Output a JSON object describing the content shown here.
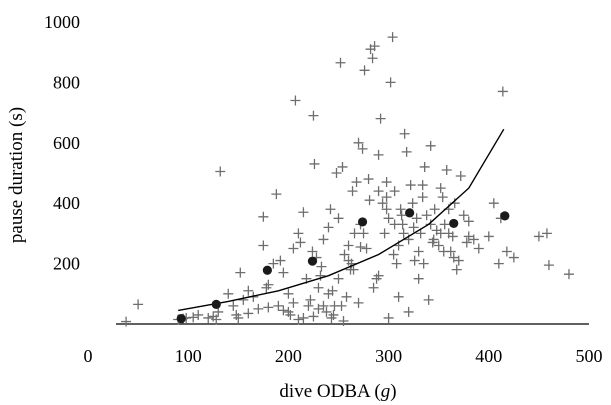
{
  "chart_data": {
    "type": "scatter",
    "xlabel": "dive ODBA (g)",
    "ylabel": "pause duration (s)",
    "xlim": [
      0,
      500
    ],
    "ylim": [
      0,
      1000
    ],
    "xticks": [
      0,
      100,
      200,
      300,
      400,
      500
    ],
    "yticks": [
      200,
      400,
      600,
      800,
      1000
    ],
    "grid": false,
    "series": [
      {
        "marker": "plus",
        "color": "#6e6e6e",
        "points": [
          [
            38,
            8
          ],
          [
            50,
            65
          ],
          [
            90,
            15
          ],
          [
            95,
            18
          ],
          [
            98,
            20
          ],
          [
            105,
            22
          ],
          [
            110,
            30
          ],
          [
            120,
            20
          ],
          [
            125,
            25
          ],
          [
            128,
            15
          ],
          [
            130,
            40
          ],
          [
            132,
            505
          ],
          [
            140,
            100
          ],
          [
            145,
            60
          ],
          [
            148,
            30
          ],
          [
            152,
            170
          ],
          [
            155,
            80
          ],
          [
            160,
            110
          ],
          [
            165,
            90
          ],
          [
            170,
            50
          ],
          [
            175,
            355
          ],
          [
            178,
            120
          ],
          [
            180,
            130
          ],
          [
            185,
            200
          ],
          [
            188,
            430
          ],
          [
            190,
            60
          ],
          [
            192,
            210
          ],
          [
            195,
            170
          ],
          [
            200,
            100
          ],
          [
            202,
            30
          ],
          [
            205,
            250
          ],
          [
            207,
            740
          ],
          [
            210,
            300
          ],
          [
            212,
            270
          ],
          [
            215,
            370
          ],
          [
            218,
            150
          ],
          [
            220,
            60
          ],
          [
            222,
            80
          ],
          [
            225,
            690
          ],
          [
            226,
            530
          ],
          [
            228,
            220
          ],
          [
            230,
            120
          ],
          [
            232,
            160
          ],
          [
            235,
            280
          ],
          [
            238,
            40
          ],
          [
            240,
            320
          ],
          [
            242,
            380
          ],
          [
            244,
            110
          ],
          [
            246,
            60
          ],
          [
            248,
            500
          ],
          [
            250,
            150
          ],
          [
            252,
            865
          ],
          [
            254,
            520
          ],
          [
            256,
            230
          ],
          [
            258,
            90
          ],
          [
            260,
            260
          ],
          [
            262,
            180
          ],
          [
            264,
            440
          ],
          [
            266,
            300
          ],
          [
            268,
            470
          ],
          [
            270,
            600
          ],
          [
            272,
            330
          ],
          [
            274,
            580
          ],
          [
            276,
            840
          ],
          [
            278,
            250
          ],
          [
            280,
            480
          ],
          [
            282,
            910
          ],
          [
            284,
            880
          ],
          [
            286,
            920
          ],
          [
            288,
            150
          ],
          [
            290,
            560
          ],
          [
            292,
            680
          ],
          [
            294,
            400
          ],
          [
            296,
            300
          ],
          [
            298,
            470
          ],
          [
            300,
            350
          ],
          [
            302,
            800
          ],
          [
            304,
            950
          ],
          [
            306,
            440
          ],
          [
            308,
            200
          ],
          [
            310,
            260
          ],
          [
            312,
            380
          ],
          [
            314,
            330
          ],
          [
            316,
            630
          ],
          [
            318,
            570
          ],
          [
            320,
            280
          ],
          [
            322,
            460
          ],
          [
            324,
            400
          ],
          [
            326,
            210
          ],
          [
            328,
            350
          ],
          [
            330,
            240
          ],
          [
            332,
            300
          ],
          [
            334,
            420
          ],
          [
            336,
            520
          ],
          [
            338,
            360
          ],
          [
            340,
            80
          ],
          [
            342,
            590
          ],
          [
            344,
            270
          ],
          [
            346,
            380
          ],
          [
            348,
            310
          ],
          [
            350,
            260
          ],
          [
            352,
            450
          ],
          [
            354,
            420
          ],
          [
            356,
            330
          ],
          [
            358,
            510
          ],
          [
            360,
            300
          ],
          [
            362,
            240
          ],
          [
            364,
            290
          ],
          [
            366,
            400
          ],
          [
            368,
            180
          ],
          [
            370,
            210
          ],
          [
            372,
            490
          ],
          [
            375,
            360
          ],
          [
            378,
            270
          ],
          [
            380,
            290
          ],
          [
            385,
            280
          ],
          [
            390,
            250
          ],
          [
            400,
            290
          ],
          [
            405,
            400
          ],
          [
            410,
            200
          ],
          [
            412,
            350
          ],
          [
            414,
            770
          ],
          [
            418,
            240
          ],
          [
            425,
            220
          ],
          [
            450,
            290
          ],
          [
            458,
            300
          ],
          [
            460,
            195
          ],
          [
            480,
            165
          ],
          [
            175,
            260
          ],
          [
            200,
            40
          ],
          [
            230,
            50
          ],
          [
            255,
            10
          ],
          [
            265,
            180
          ],
          [
            285,
            120
          ],
          [
            310,
            90
          ],
          [
            320,
            40
          ],
          [
            330,
            150
          ],
          [
            300,
            20
          ],
          [
            245,
            30
          ],
          [
            150,
            20
          ],
          [
            160,
            35
          ],
          [
            180,
            55
          ],
          [
            195,
            45
          ],
          [
            215,
            20
          ],
          [
            270,
            70
          ],
          [
            305,
            230
          ],
          [
            315,
            300
          ],
          [
            325,
            320
          ],
          [
            345,
            280
          ],
          [
            355,
            240
          ],
          [
            365,
            220
          ],
          [
            335,
            200
          ],
          [
            290,
            160
          ],
          [
            275,
            300
          ],
          [
            260,
            210
          ],
          [
            250,
            350
          ],
          [
            240,
            100
          ],
          [
            235,
            60
          ],
          [
            225,
            25
          ],
          [
            210,
            15
          ],
          [
            205,
            70
          ],
          [
            290,
            440
          ],
          [
            298,
            420
          ],
          [
            306,
            330
          ],
          [
            313,
            360
          ],
          [
            334,
            460
          ],
          [
            342,
            330
          ],
          [
            352,
            300
          ],
          [
            360,
            380
          ],
          [
            380,
            340
          ],
          [
            298,
            380
          ],
          [
            281,
            410
          ],
          [
            272,
            255
          ],
          [
            263,
            200
          ],
          [
            253,
            60
          ],
          [
            243,
            20
          ],
          [
            233,
            190
          ],
          [
            224,
            240
          ]
        ]
      },
      {
        "marker": "dot",
        "color": "#1a1a1a",
        "points": [
          [
            93,
            18
          ],
          [
            128,
            65
          ],
          [
            179,
            178
          ],
          [
            224,
            208
          ],
          [
            274,
            338
          ],
          [
            321,
            368
          ],
          [
            365,
            333
          ],
          [
            416,
            358
          ]
        ]
      }
    ],
    "curve": {
      "type": "exponential-fit",
      "color": "#000000",
      "points": [
        [
          90,
          45
        ],
        [
          140,
          75
        ],
        [
          190,
          110
        ],
        [
          240,
          160
        ],
        [
          290,
          230
        ],
        [
          340,
          330
        ],
        [
          380,
          450
        ],
        [
          415,
          645
        ]
      ]
    }
  }
}
